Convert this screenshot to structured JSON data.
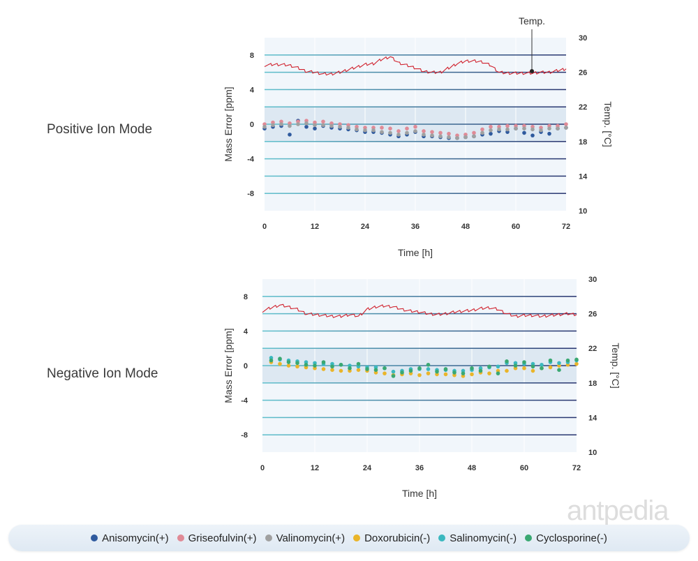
{
  "watermark": "antpedia",
  "colors": {
    "Anisomycin(+)": "#2f5a9e",
    "Griseofulvin(+)": "#e08a96",
    "Valinomycin(+)": "#a0a0a0",
    "Doxorubicin(-)": "#eab52a",
    "Salinomycin(-)": "#3bb8bf",
    "Cyclosporine(-)": "#3aa872",
    "temp": "#d0202c"
  },
  "legend": [
    {
      "label": "Anisomycin(+)",
      "color": "#2f5a9e"
    },
    {
      "label": "Griseofulvin(+)",
      "color": "#e08a96"
    },
    {
      "label": "Valinomycin(+)",
      "color": "#a0a0a0"
    },
    {
      "label": "Doxorubicin(-)",
      "color": "#eab52a"
    },
    {
      "label": "Salinomycin(-)",
      "color": "#3bb8bf"
    },
    {
      "label": "Cyclosporine(-)",
      "color": "#3aa872"
    }
  ],
  "chart_data": [
    {
      "type": "scatter",
      "title": "Positive Ion Mode",
      "xlabel": "Time [h]",
      "ylabel": "Mass Error [ppm]",
      "y2label": "Temp. [°C]",
      "annotation": "Temp.",
      "xlim": [
        0,
        72
      ],
      "ylim": [
        -10,
        10
      ],
      "y2lim": [
        10,
        30
      ],
      "xticks": [
        "0",
        "12",
        "24",
        "36",
        "48",
        "60",
        "72"
      ],
      "yticks": [
        "8",
        "4",
        "0",
        "-4",
        "-8"
      ],
      "y2ticks": [
        "30",
        "26",
        "22",
        "18",
        "14",
        "10"
      ],
      "temperature": {
        "x_start": 0,
        "x_step": 2,
        "values": [
          26.8,
          26.9,
          26.9,
          26.8,
          26.5,
          26.1,
          26.0,
          25.8,
          25.8,
          26.0,
          26.3,
          26.6,
          26.9,
          27.0,
          27.5,
          27.8,
          27.1,
          26.8,
          26.5,
          26.1,
          26.0,
          26.0,
          26.5,
          27.0,
          27.3,
          27.3,
          27.2,
          26.8,
          26.0,
          25.9,
          25.9,
          25.9,
          25.9,
          26.0,
          26.0,
          26.2,
          26.4
        ]
      },
      "series": [
        {
          "name": "Anisomycin(+)",
          "x_start": 0,
          "x_step": 2,
          "values": [
            -0.5,
            -0.3,
            -0.2,
            -1.2,
            0.4,
            -0.3,
            -0.5,
            -0.2,
            -0.4,
            -0.5,
            -0.6,
            -0.7,
            -0.9,
            -0.9,
            -1.0,
            -1.2,
            -1.4,
            -1.2,
            -0.9,
            -1.4,
            -1.4,
            -1.5,
            -1.6,
            -1.6,
            -1.5,
            -1.4,
            -1.2,
            -1.1,
            -0.8,
            -0.9,
            -0.5,
            -1.0,
            -1.3,
            -0.9,
            -1.1,
            -0.5,
            -0.4
          ]
        },
        {
          "name": "Griseofulvin(+)",
          "x_start": 0,
          "x_step": 2,
          "values": [
            0,
            0.2,
            0.3,
            0.1,
            0.3,
            0.4,
            0.2,
            0.3,
            0.1,
            0,
            -0.1,
            -0.3,
            -0.4,
            -0.4,
            -0.4,
            -0.5,
            -0.8,
            -0.5,
            -0.3,
            -0.8,
            -0.9,
            -1.0,
            -1.1,
            -1.3,
            -1.2,
            -1.0,
            -0.6,
            -0.3,
            -0.3,
            -0.2,
            -0.2,
            -0.2,
            -0.3,
            -0.4,
            -0.2,
            -0.2,
            0
          ]
        },
        {
          "name": "Valinomycin(+)",
          "x_start": 0,
          "x_step": 2,
          "values": [
            -0.3,
            -0.1,
            0,
            -0.2,
            0,
            0.1,
            -0.1,
            -0.1,
            -0.2,
            -0.3,
            -0.4,
            -0.6,
            -0.7,
            -0.7,
            -0.9,
            -1.0,
            -1.2,
            -1.0,
            -0.8,
            -1.2,
            -1.3,
            -1.4,
            -1.5,
            -1.6,
            -1.5,
            -1.4,
            -1.0,
            -0.7,
            -0.6,
            -0.6,
            -0.5,
            -0.5,
            -0.6,
            -0.7,
            -0.5,
            -0.5,
            -0.4
          ]
        }
      ]
    },
    {
      "type": "scatter",
      "title": "Negative Ion Mode",
      "xlabel": "Time [h]",
      "ylabel": "Mass Error [ppm]",
      "y2label": "Temp. [°C]",
      "xlim": [
        0,
        72
      ],
      "ylim": [
        -10,
        10
      ],
      "y2lim": [
        10,
        30
      ],
      "xticks": [
        "0",
        "12",
        "24",
        "36",
        "48",
        "60",
        "72"
      ],
      "yticks": [
        "8",
        "4",
        "0",
        "-4",
        "-8"
      ],
      "y2ticks": [
        "30",
        "26",
        "22",
        "18",
        "14",
        "10"
      ],
      "temperature": {
        "x_start": 0,
        "x_step": 2,
        "values": [
          26.3,
          26.7,
          27.0,
          26.8,
          26.5,
          26.0,
          25.9,
          25.8,
          25.7,
          25.7,
          25.9,
          25.7,
          26.5,
          26.8,
          26.9,
          26.8,
          26.5,
          26.3,
          26.2,
          26.0,
          25.9,
          26.0,
          26.2,
          26.3,
          26.4,
          26.6,
          26.7,
          26.5,
          26.0,
          25.7,
          25.8,
          25.8,
          25.7,
          25.8,
          25.9,
          26.0,
          25.9
        ]
      },
      "series": [
        {
          "name": "Doxorubicin(-)",
          "x_start": 2,
          "x_step": 2,
          "values": [
            0.4,
            0.2,
            0,
            -0.1,
            -0.2,
            -0.3,
            -0.4,
            -0.5,
            -0.6,
            -0.6,
            -0.5,
            -0.6,
            -0.8,
            -0.9,
            -1.1,
            -1.0,
            -0.9,
            -1.1,
            -0.9,
            -1.0,
            -1.0,
            -1.1,
            -1.2,
            -1.0,
            -0.8,
            -0.9,
            -0.6,
            -0.6,
            -0.3,
            -0.3,
            -0.6,
            -0.3,
            -0.2,
            0,
            0.1,
            0.2
          ]
        },
        {
          "name": "Salinomycin(-)",
          "x_start": 2,
          "x_step": 2,
          "values": [
            0.9,
            0.7,
            0.6,
            0.5,
            0.4,
            0.3,
            0.2,
            0.2,
            0.1,
            0,
            -0.1,
            -0.2,
            -0.2,
            -0.3,
            -0.7,
            -0.6,
            -0.4,
            -0.4,
            -0.4,
            -0.5,
            -0.5,
            -0.6,
            -0.6,
            -0.5,
            -0.3,
            -0.2,
            -0.1,
            0.3,
            0.3,
            0.2,
            0.2,
            0.1,
            0.4,
            0.3,
            0.4,
            0.6
          ]
        },
        {
          "name": "Cyclosporine(-)",
          "x_start": 2,
          "x_step": 2,
          "values": [
            0.6,
            0.8,
            0.4,
            0.3,
            0.1,
            0.0,
            0.4,
            -0.1,
            0.1,
            -0.3,
            0.2,
            -0.4,
            -0.5,
            -0.3,
            -1.2,
            -0.8,
            -0.6,
            -0.3,
            0.1,
            -0.7,
            -0.4,
            -0.8,
            -0.9,
            -0.3,
            -0.6,
            -0.1,
            -0.9,
            0.5,
            0.0,
            0.4,
            -0.1,
            -0.3,
            0.6,
            -0.5,
            0.6,
            0.7
          ]
        }
      ]
    }
  ]
}
